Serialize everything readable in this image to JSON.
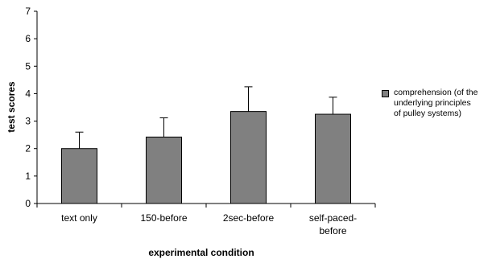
{
  "chart_data": {
    "type": "bar",
    "ylabel": "test scores",
    "xlabel": "experimental condition",
    "ylim": [
      0,
      7
    ],
    "yticks": [
      "0",
      "1",
      "2",
      "3",
      "4",
      "5",
      "6",
      "7"
    ],
    "categories": [
      "text only",
      "150-before",
      "2sec-before",
      "self-paced-before"
    ],
    "category_labels": [
      "text only",
      "150-before",
      "2sec-before",
      "self-paced-\nbefore"
    ],
    "series": [
      {
        "name": "comprehension (of the underlying principles of pulley systems)",
        "values": [
          2.0,
          2.42,
          3.35,
          3.25
        ],
        "error_upper": [
          0.6,
          0.7,
          0.9,
          0.62
        ]
      }
    ],
    "legend_text": "comprehension (of the\nunderlying principles\nof pulley systems)",
    "bar_color": "#808080",
    "grid": false,
    "legend_position": "right"
  }
}
